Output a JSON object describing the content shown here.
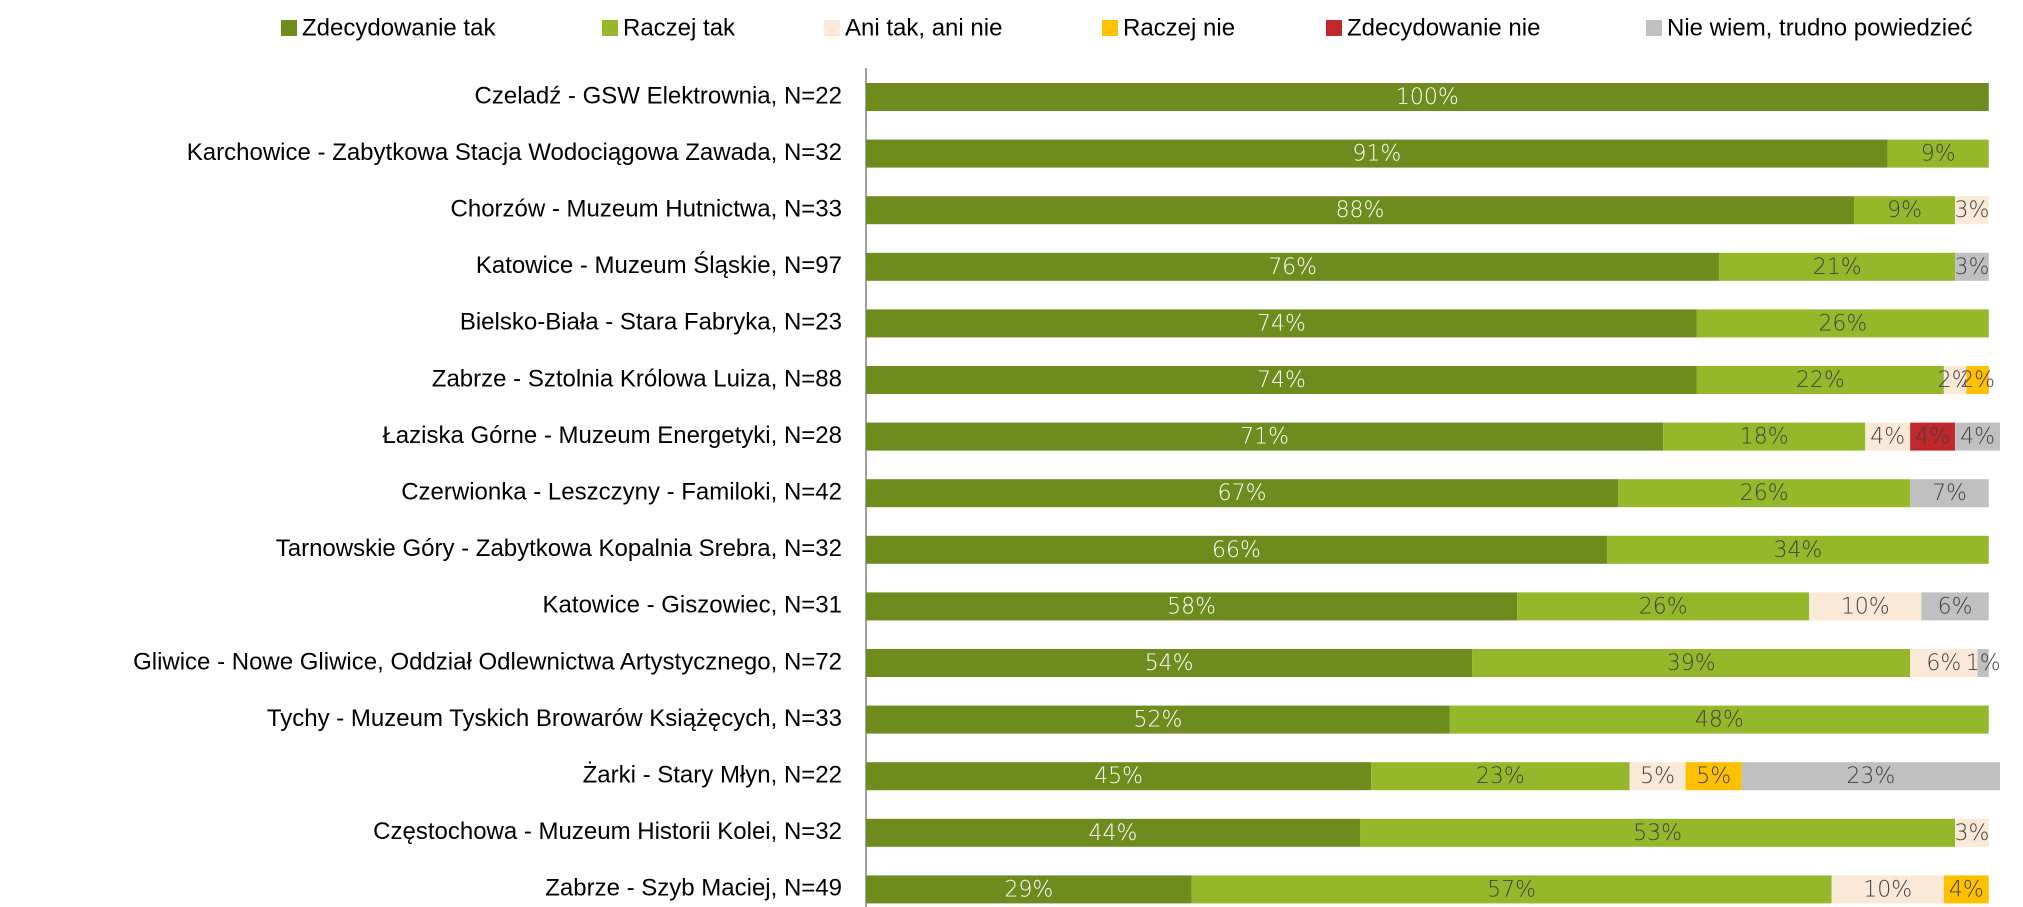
{
  "chart_data": {
    "type": "stacked-bar-horizontal",
    "categories": [
      "Czeladź - GSW Elektrownia, N=22",
      "Karchowice - Zabytkowa Stacja Wodociągowa Zawada, N=32",
      "Chorzów - Muzeum Hutnictwa, N=33",
      "Katowice - Muzeum Śląskie, N=97",
      "Bielsko-Biała - Stara Fabryka, N=23",
      "Zabrze - Sztolnia Królowa Luiza, N=88",
      "Łaziska Górne - Muzeum Energetyki, N=28",
      "Czerwionka - Leszczyny - Familoki, N=42",
      "Tarnowskie Góry - Zabytkowa Kopalnia Srebra, N=32",
      "Katowice - Giszowiec, N=31",
      "Gliwice - Nowe Gliwice, Oddział Odlewnictwa Artystycznego, N=72",
      "Tychy - Muzeum Tyskich Browarów Książęcych, N=33",
      "Żarki - Stary Młyn, N=22",
      "Częstochowa - Muzeum Historii Kolei, N=32",
      "Zabrze - Szyb Maciej, N=49"
    ],
    "series": [
      {
        "name": "Zdecydowanie tak",
        "color": "#6e8b1e",
        "values": [
          100,
          91,
          88,
          76,
          74,
          74,
          71,
          67,
          66,
          58,
          54,
          52,
          45,
          44,
          29
        ],
        "value_labels": [
          "100%",
          "91%",
          "88%",
          "76%",
          "74%",
          "74%",
          "71%",
          "67%",
          "66%",
          "58%",
          "54%",
          "52%",
          "45%",
          "44%",
          "29%"
        ]
      },
      {
        "name": "Raczej tak",
        "color": "#95b72a",
        "values": [
          null,
          9,
          9,
          21,
          26,
          22,
          18,
          26,
          34,
          26,
          39,
          48,
          23,
          53,
          57
        ],
        "value_labels": [
          null,
          "9%",
          "9%",
          "21%",
          "26%",
          "22%",
          "18%",
          "26%",
          "34%",
          "26%",
          "39%",
          "48%",
          "23%",
          "53%",
          "57%"
        ]
      },
      {
        "name": "Ani tak, ani nie",
        "color": "#fbe9d7",
        "values": [
          null,
          null,
          3,
          null,
          null,
          2,
          4,
          null,
          null,
          10,
          6,
          null,
          5,
          3,
          10
        ],
        "value_labels": [
          null,
          null,
          "3%",
          null,
          null,
          "2%",
          "4%",
          null,
          null,
          "10%",
          "6%",
          null,
          "5%",
          "3%",
          "10%"
        ]
      },
      {
        "name": "Raczej nie",
        "color": "#ffc000",
        "values": [
          null,
          null,
          null,
          null,
          null,
          2,
          null,
          null,
          null,
          null,
          null,
          null,
          5,
          null,
          4
        ],
        "value_labels": [
          null,
          null,
          null,
          null,
          null,
          "2%",
          null,
          null,
          null,
          null,
          null,
          null,
          "5%",
          null,
          "4%"
        ]
      },
      {
        "name": "Zdecydowanie nie",
        "color": "#c0282c",
        "values": [
          null,
          null,
          null,
          null,
          null,
          null,
          4,
          null,
          null,
          null,
          null,
          null,
          null,
          null,
          null
        ],
        "value_labels": [
          null,
          null,
          null,
          null,
          null,
          null,
          "4%",
          null,
          null,
          null,
          null,
          null,
          null,
          null,
          null
        ]
      },
      {
        "name": "Nie wiem, trudno powiedzieć",
        "color": "#c0c0c0",
        "values": [
          null,
          null,
          null,
          3,
          null,
          null,
          4,
          7,
          null,
          6,
          1,
          null,
          23,
          null,
          null
        ],
        "value_labels": [
          null,
          null,
          null,
          "3%",
          null,
          null,
          "4%",
          "7%",
          null,
          "6%",
          "1%",
          null,
          "23%",
          null,
          null
        ]
      }
    ]
  }
}
